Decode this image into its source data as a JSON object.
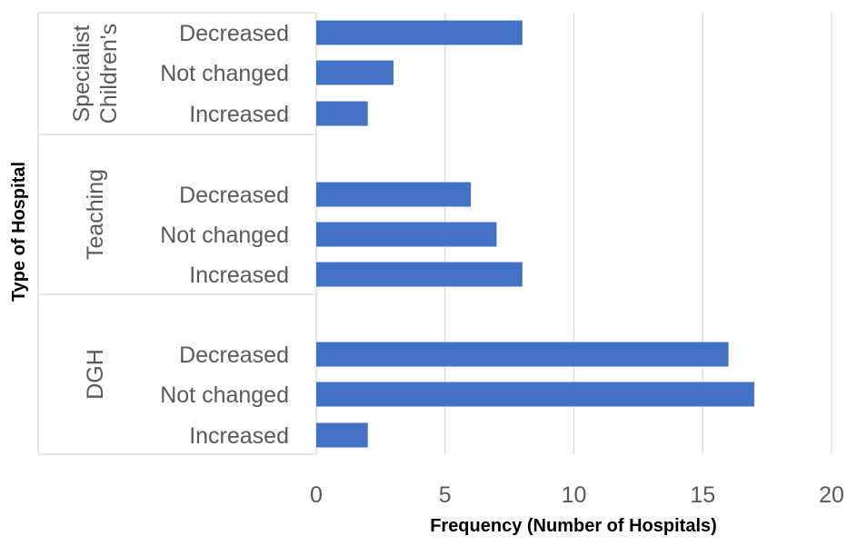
{
  "chart_data": {
    "type": "bar",
    "orientation": "horizontal",
    "xlabel": "Frequency (Number of Hospitals)",
    "ylabel": "Type of Hospital",
    "xlim": [
      0,
      20
    ],
    "xticks": [
      "0",
      "5",
      "10",
      "15",
      "20"
    ],
    "grid": true,
    "legend": "none",
    "color": "#4472C4",
    "groups": [
      {
        "name": "Specialist Children's",
        "name_lines": [
          "Specialist",
          "Children's"
        ],
        "categories": [
          "Decreased",
          "Not changed",
          "Increased"
        ],
        "values": [
          8,
          3,
          2
        ]
      },
      {
        "name": "Teaching",
        "name_lines": [
          "Teaching"
        ],
        "categories": [
          "Decreased",
          "Not changed",
          "Increased"
        ],
        "values": [
          6,
          7,
          8
        ]
      },
      {
        "name": "DGH",
        "name_lines": [
          "DGH"
        ],
        "categories": [
          "Decreased",
          "Not changed",
          "Increased"
        ],
        "values": [
          16,
          17,
          2
        ]
      }
    ]
  }
}
